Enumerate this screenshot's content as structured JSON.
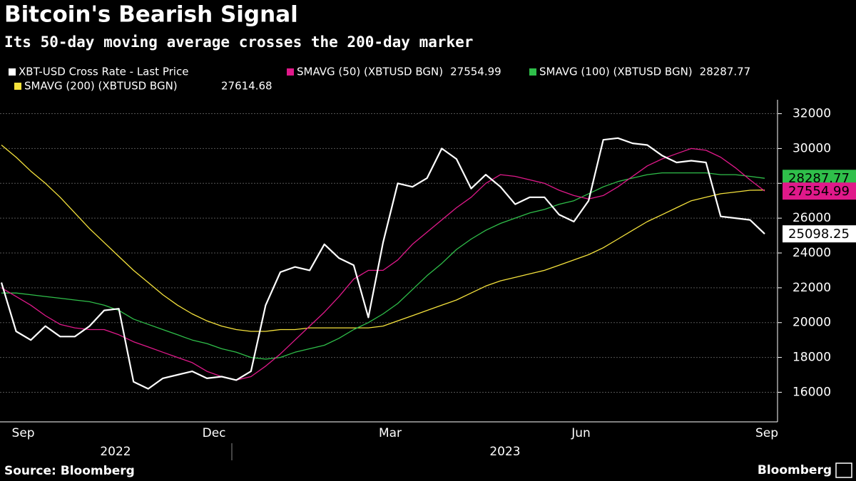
{
  "chart_data": {
    "type": "line",
    "title": "Bitcoin's Bearish Signal",
    "subtitle": "Its 50-day moving average crosses the 200-day marker",
    "source": "Source: Bloomberg",
    "brand": "Bloomberg",
    "year_labels": [
      "2022",
      "2023"
    ],
    "categories": [
      null,
      "Sep",
      null,
      null,
      null,
      null,
      null,
      null,
      null,
      null,
      null,
      null,
      null,
      null,
      "Dec",
      null,
      null,
      null,
      null,
      null,
      null,
      null,
      null,
      null,
      null,
      null,
      "Mar",
      null,
      null,
      null,
      null,
      null,
      null,
      null,
      null,
      null,
      null,
      null,
      null,
      "Jun",
      null,
      null,
      null,
      null,
      null,
      null,
      null,
      null,
      null,
      null,
      null,
      null,
      "Sep"
    ],
    "series": [
      {
        "name": "SMAVG (200) (XBTUSD BGN)",
        "color": "#f5e23c",
        "values": [
          30200,
          29500,
          28700,
          28000,
          27200,
          26300,
          25400,
          24600,
          23800,
          23000,
          22300,
          21600,
          21000,
          20500,
          20100,
          19800,
          19600,
          19500,
          19500,
          19600,
          19600,
          19700,
          19700,
          19700,
          19700,
          19700,
          19800,
          20100,
          20400,
          20700,
          21000,
          21300,
          21700,
          22100,
          22400,
          22600,
          22800,
          23000,
          23300,
          23600,
          23900,
          24300,
          24800,
          25300,
          25800,
          26200,
          26600,
          27000,
          27200,
          27400,
          27500,
          27600,
          27614.68
        ]
      },
      {
        "name": "SMAVG (100) (XBTUSD BGN)",
        "color": "#2fbf4a",
        "values": [
          21700,
          21700,
          21600,
          21500,
          21400,
          21300,
          21200,
          21000,
          20700,
          20200,
          19900,
          19600,
          19300,
          19000,
          18800,
          18500,
          18300,
          18000,
          17900,
          18000,
          18300,
          18500,
          18700,
          19100,
          19600,
          20000,
          20500,
          21100,
          21900,
          22700,
          23400,
          24200,
          24800,
          25300,
          25700,
          26000,
          26300,
          26500,
          26800,
          27000,
          27400,
          27800,
          28100,
          28300,
          28500,
          28600,
          28600,
          28600,
          28600,
          28500,
          28500,
          28400,
          28287.77
        ]
      },
      {
        "name": "SMAVG (50) (XBTUSD BGN)",
        "color": "#e0198a",
        "values": [
          22000,
          21500,
          21000,
          20400,
          19900,
          19700,
          19600,
          19600,
          19300,
          18900,
          18600,
          18300,
          18000,
          17700,
          17200,
          16900,
          16700,
          16900,
          17500,
          18200,
          19000,
          19800,
          20600,
          21500,
          22500,
          23000,
          23000,
          23600,
          24500,
          25200,
          25900,
          26600,
          27200,
          28000,
          28500,
          28400,
          28200,
          28000,
          27600,
          27300,
          27100,
          27300,
          27800,
          28400,
          29000,
          29400,
          29700,
          30000,
          29900,
          29500,
          28900,
          28200,
          27554.99
        ]
      },
      {
        "name": "XBT-USD Cross Rate - Last Price",
        "color": "#ffffff",
        "values": [
          22300,
          19500,
          19000,
          19800,
          19200,
          19200,
          19800,
          20700,
          20800,
          16600,
          16200,
          16800,
          17000,
          17200,
          16800,
          16900,
          16700,
          17200,
          21000,
          22900,
          23200,
          23000,
          24500,
          23700,
          23300,
          20300,
          24600,
          28000,
          27800,
          28300,
          30000,
          29400,
          27700,
          28500,
          27800,
          26800,
          27200,
          27200,
          26200,
          25800,
          27000,
          30500,
          30600,
          30300,
          30200,
          29600,
          29200,
          29300,
          29200,
          26100,
          26000,
          25900,
          25098.25
        ]
      }
    ],
    "ylim": [
      14300,
      32800
    ],
    "yticks": [
      16000,
      18000,
      20000,
      22000,
      24000,
      26000,
      28000,
      30000,
      32000
    ],
    "grid": true
  }
}
